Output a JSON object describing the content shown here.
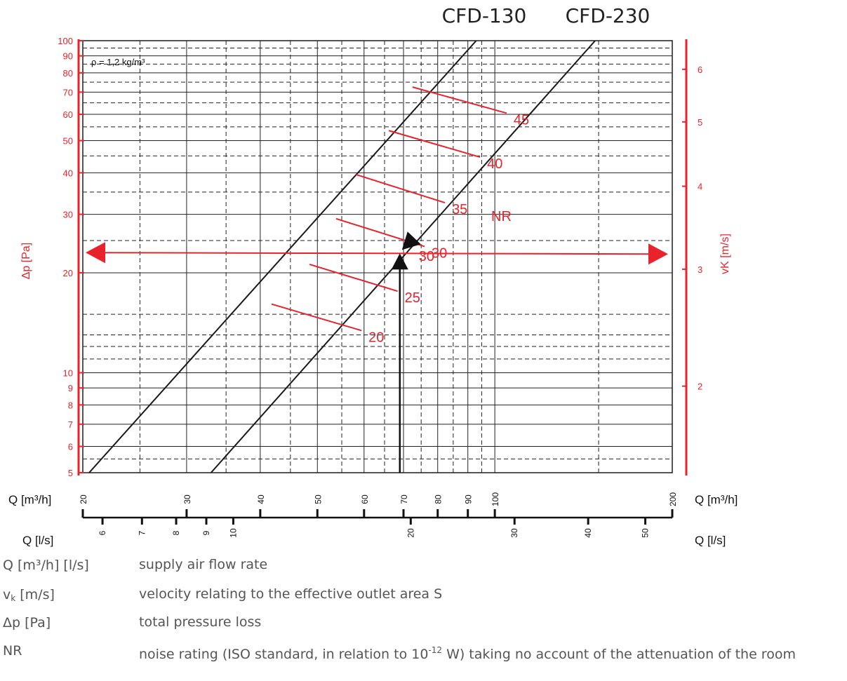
{
  "header": {
    "model_a": "CFD-130",
    "model_b": "CFD-230"
  },
  "chart_data": {
    "type": "line",
    "density_note": "ρ = 1,2 kg/m³",
    "left_axis": {
      "label": "Δp [Pa]",
      "scale": "log",
      "range": [
        5,
        100
      ],
      "ticks": [
        "5",
        "6",
        "7",
        "8",
        "9",
        "10",
        "20",
        "30",
        "40",
        "50",
        "60",
        "70",
        "80",
        "90",
        "100"
      ],
      "tick_values": [
        5,
        6,
        7,
        8,
        9,
        10,
        20,
        30,
        40,
        50,
        60,
        70,
        80,
        90,
        100
      ]
    },
    "right_axis": {
      "label": "vK [m/s]",
      "scale": "log",
      "ticks": [
        "2",
        "3",
        "4",
        "5",
        "6"
      ],
      "tick_values": [
        2,
        3,
        4,
        5,
        6
      ]
    },
    "bottom_axis_m3h": {
      "label": "Q [m³/h]",
      "scale": "log",
      "range": [
        20,
        200
      ],
      "ticks": [
        "20",
        "30",
        "40",
        "50",
        "60",
        "70",
        "80",
        "90",
        "100",
        "200"
      ],
      "tick_values": [
        20,
        30,
        40,
        50,
        60,
        70,
        80,
        90,
        100,
        200
      ]
    },
    "bottom_axis_ls": {
      "label": "Q [l/s]",
      "ticks": [
        "6",
        "7",
        "8",
        "9",
        "10",
        "20",
        "30",
        "40",
        "50"
      ],
      "tick_values": [
        6,
        7,
        8,
        9,
        10,
        20,
        30,
        40,
        50
      ]
    },
    "series": [
      {
        "name": "CFD-130",
        "points": [
          [
            20.5,
            5
          ],
          [
            93,
            100
          ]
        ]
      },
      {
        "name": "CFD-230",
        "points": [
          [
            33,
            5
          ],
          [
            148,
            100
          ]
        ]
      }
    ],
    "nr_label": "NR",
    "nr_lines": [
      {
        "label": "20",
        "from": [
          41.8,
          16.1
        ],
        "to": [
          59.4,
          13.4
        ]
      },
      {
        "label": "25",
        "from": [
          48.5,
          21.2
        ],
        "to": [
          68.4,
          17.6
        ]
      },
      {
        "label": "35",
        "from": [
          58.2,
          39.5
        ],
        "to": [
          82.3,
          32.5
        ]
      },
      {
        "label": "30",
        "from": [
          53.8,
          29.1
        ],
        "to": [
          76,
          24
        ]
      },
      {
        "label": "40",
        "from": [
          66.1,
          53.6
        ],
        "to": [
          94.4,
          44.6
        ]
      },
      {
        "label": "45",
        "from": [
          72.5,
          72.5
        ],
        "to": [
          104.7,
          60.5
        ]
      }
    ],
    "example": {
      "q_m3h": 69,
      "dp_pa": 23,
      "nr_value": "30"
    }
  },
  "legend": [
    {
      "term": "Q  [m³/h] [l/s]",
      "desc": "supply air flow rate"
    },
    {
      "term": "v",
      "term_sub": "k",
      "term_rest": " [m/s]",
      "desc": "velocity relating to the effective outlet area S"
    },
    {
      "term": "Δp [Pa]",
      "desc": "total pressure loss"
    },
    {
      "term": "NR",
      "desc": "noise rating (ISO standard, in relation to 10",
      "desc_sup": "-12",
      "desc_rest": " W) taking no account of the attenuation of the room"
    }
  ]
}
